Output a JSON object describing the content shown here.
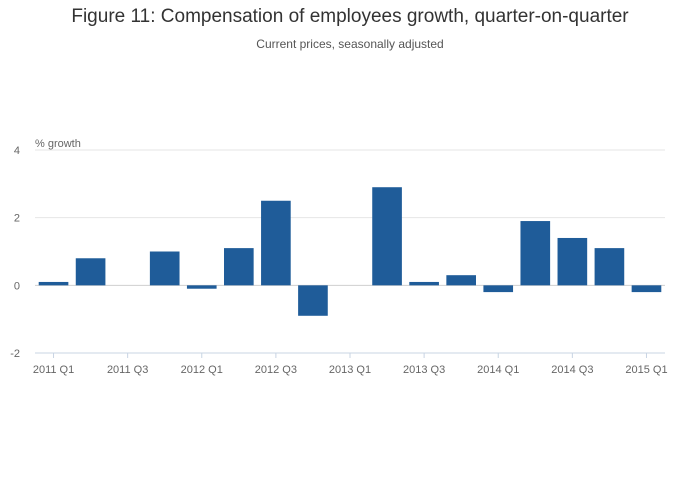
{
  "chart_data": {
    "type": "bar",
    "title": "Figure 11: Compensation of employees growth, quarter-on-quarter",
    "subtitle": "Current prices, seasonally adjusted",
    "ylabel": "% growth",
    "xlabel": "",
    "ylim": [
      -2,
      4
    ],
    "yticks": [
      -2,
      0,
      2,
      4
    ],
    "grid": true,
    "bar_color": "#1f5c99",
    "categories": [
      "2011 Q1",
      "2011 Q2",
      "2011 Q3",
      "2011 Q4",
      "2012 Q1",
      "2012 Q2",
      "2012 Q3",
      "2012 Q4",
      "2013 Q1",
      "2013 Q2",
      "2013 Q3",
      "2013 Q4",
      "2014 Q1",
      "2014 Q2",
      "2014 Q3",
      "2014 Q4",
      "2015 Q1"
    ],
    "xtick_labels": [
      "2011 Q1",
      "2011 Q3",
      "2012 Q1",
      "2012 Q3",
      "2013 Q1",
      "2013 Q3",
      "2014 Q1",
      "2014 Q3",
      "2015 Q1"
    ],
    "values": [
      0.1,
      0.8,
      0.0,
      1.0,
      -0.1,
      1.1,
      2.5,
      -0.9,
      0.0,
      2.9,
      0.1,
      0.3,
      -0.2,
      1.9,
      1.4,
      1.1,
      -0.2
    ]
  }
}
